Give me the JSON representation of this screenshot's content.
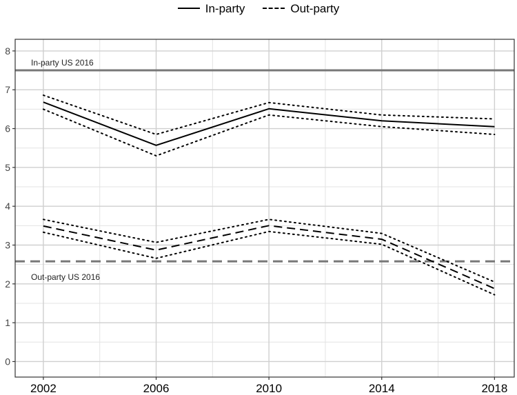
{
  "chart_data": {
    "type": "line",
    "title": "",
    "xlabel": "",
    "ylabel": "",
    "x": [
      2002,
      2006,
      2010,
      2014,
      2018
    ],
    "x_ticks": [
      "2002",
      "2006",
      "2010",
      "2014",
      "2018"
    ],
    "ylim": [
      -0.4,
      8.3
    ],
    "xlim": [
      2001,
      2018.7
    ],
    "y_ticks": [
      "0",
      "1",
      "2",
      "3",
      "4",
      "5",
      "6",
      "7",
      "8"
    ],
    "grid": true,
    "legend_position": "top",
    "series": [
      {
        "name": "In-party",
        "style": "solid",
        "values": [
          6.68,
          5.57,
          6.51,
          6.2,
          6.05
        ]
      },
      {
        "name": "",
        "style": "dotted",
        "role": "in-party upper bound",
        "values": [
          6.86,
          5.85,
          6.67,
          6.35,
          6.25
        ]
      },
      {
        "name": "",
        "style": "dotted",
        "role": "in-party lower bound",
        "values": [
          6.5,
          5.3,
          6.35,
          6.05,
          5.85
        ]
      },
      {
        "name": "Out-party",
        "style": "dashed",
        "values": [
          3.49,
          2.87,
          3.5,
          3.15,
          1.88
        ]
      },
      {
        "name": "",
        "style": "dotted",
        "role": "out-party upper bound",
        "values": [
          3.66,
          3.07,
          3.66,
          3.3,
          2.05
        ]
      },
      {
        "name": "",
        "style": "dotted",
        "role": "out-party lower bound",
        "values": [
          3.33,
          2.66,
          3.35,
          3.02,
          1.72
        ]
      }
    ],
    "reference_lines": [
      {
        "label": "In-party US 2016",
        "y": 7.5,
        "style": "solid",
        "color": "#777777"
      },
      {
        "label": "Out-party US 2016",
        "y": 2.58,
        "style": "dashed",
        "color": "#777777"
      }
    ]
  },
  "legend": {
    "items": [
      {
        "label": "In-party",
        "style": "solid"
      },
      {
        "label": "Out-party",
        "style": "dashed"
      }
    ]
  }
}
